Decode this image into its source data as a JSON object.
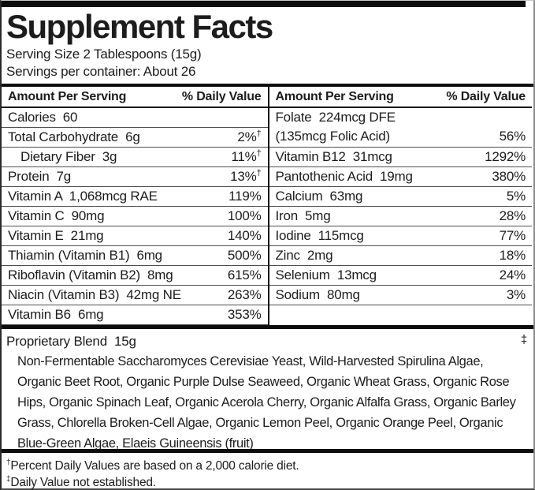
{
  "title": "Supplement Facts",
  "serving": {
    "size": "Serving Size 2 Tablespoons (15g)",
    "per_container": "Servings per container: About 26"
  },
  "table": {
    "header": {
      "amount": "Amount Per Serving",
      "dv": "% Daily Value"
    },
    "left_rows": [
      {
        "label": "Calories  60",
        "value": "",
        "mark": ""
      },
      {
        "label": "Total Carbohydrate  6g",
        "value": "2%",
        "mark": "†"
      },
      {
        "label": "Dietary Fiber  3g",
        "value": "11%",
        "mark": "†",
        "indent": true
      },
      {
        "label": "Protein  7g",
        "value": "13%",
        "mark": "†"
      },
      {
        "label": "Vitamin A  1,068mcg RAE",
        "value": "119%",
        "mark": ""
      },
      {
        "label": "Vitamin C  90mg",
        "value": "100%",
        "mark": ""
      },
      {
        "label": "Vitamin E  21mg",
        "value": "140%",
        "mark": ""
      },
      {
        "label": "Thiamin (Vitamin B1)  6mg",
        "value": "500%",
        "mark": ""
      },
      {
        "label": "Riboflavin (Vitamin B2)  8mg",
        "value": "615%",
        "mark": ""
      },
      {
        "label": "Niacin (Vitamin B3)  42mg NE",
        "value": "263%",
        "mark": ""
      },
      {
        "label": "Vitamin B6  6mg",
        "value": "353%",
        "mark": ""
      }
    ],
    "right_rows": [
      {
        "line1": "Folate  224mcg DFE",
        "line2": "(135mcg Folic Acid)",
        "value": "56%",
        "mark": "",
        "two_line": true
      },
      {
        "label": "Vitamin B12  31mcg",
        "value": "1292%",
        "mark": ""
      },
      {
        "label": "Pantothenic Acid  19mg",
        "value": "380%",
        "mark": ""
      },
      {
        "label": "Calcium  63mg",
        "value": "5%",
        "mark": ""
      },
      {
        "label": "Iron  5mg",
        "value": "28%",
        "mark": ""
      },
      {
        "label": "Iodine  115mcg",
        "value": "77%",
        "mark": ""
      },
      {
        "label": "Zinc  2mg",
        "value": "18%",
        "mark": ""
      },
      {
        "label": "Selenium  13mcg",
        "value": "24%",
        "mark": ""
      },
      {
        "label": "Sodium  80mg",
        "value": "3%",
        "mark": ""
      }
    ]
  },
  "blend": {
    "title": "Proprietary Blend  15g",
    "mark": "‡",
    "ingredients": "Non-Fermentable Saccharomyces Cerevisiae Yeast, Wild-Harvested Spirulina Algae, Organic Beet Root, Organic Purple Dulse Seaweed, Organic Wheat Grass, Organic Rose Hips, Organic Spinach Leaf, Organic Acerola Cherry, Organic Alfalfa Grass, Organic Barley Grass, Chlorella Broken-Cell Algae, Organic Lemon Peel, Organic Orange Peel, Organic Blue-Green Algae, Elaeis Guineensis (fruit)"
  },
  "footnotes": [
    {
      "mark": "†",
      "text": "Percent Daily Values are based on a 2,000 calorie diet."
    },
    {
      "mark": "‡",
      "text": "Daily Value not established."
    }
  ],
  "colors": {
    "text": "#1c1c1c",
    "rule": "#0d0d0d",
    "separator": "#4f4f4f",
    "background": "#ffffff"
  }
}
